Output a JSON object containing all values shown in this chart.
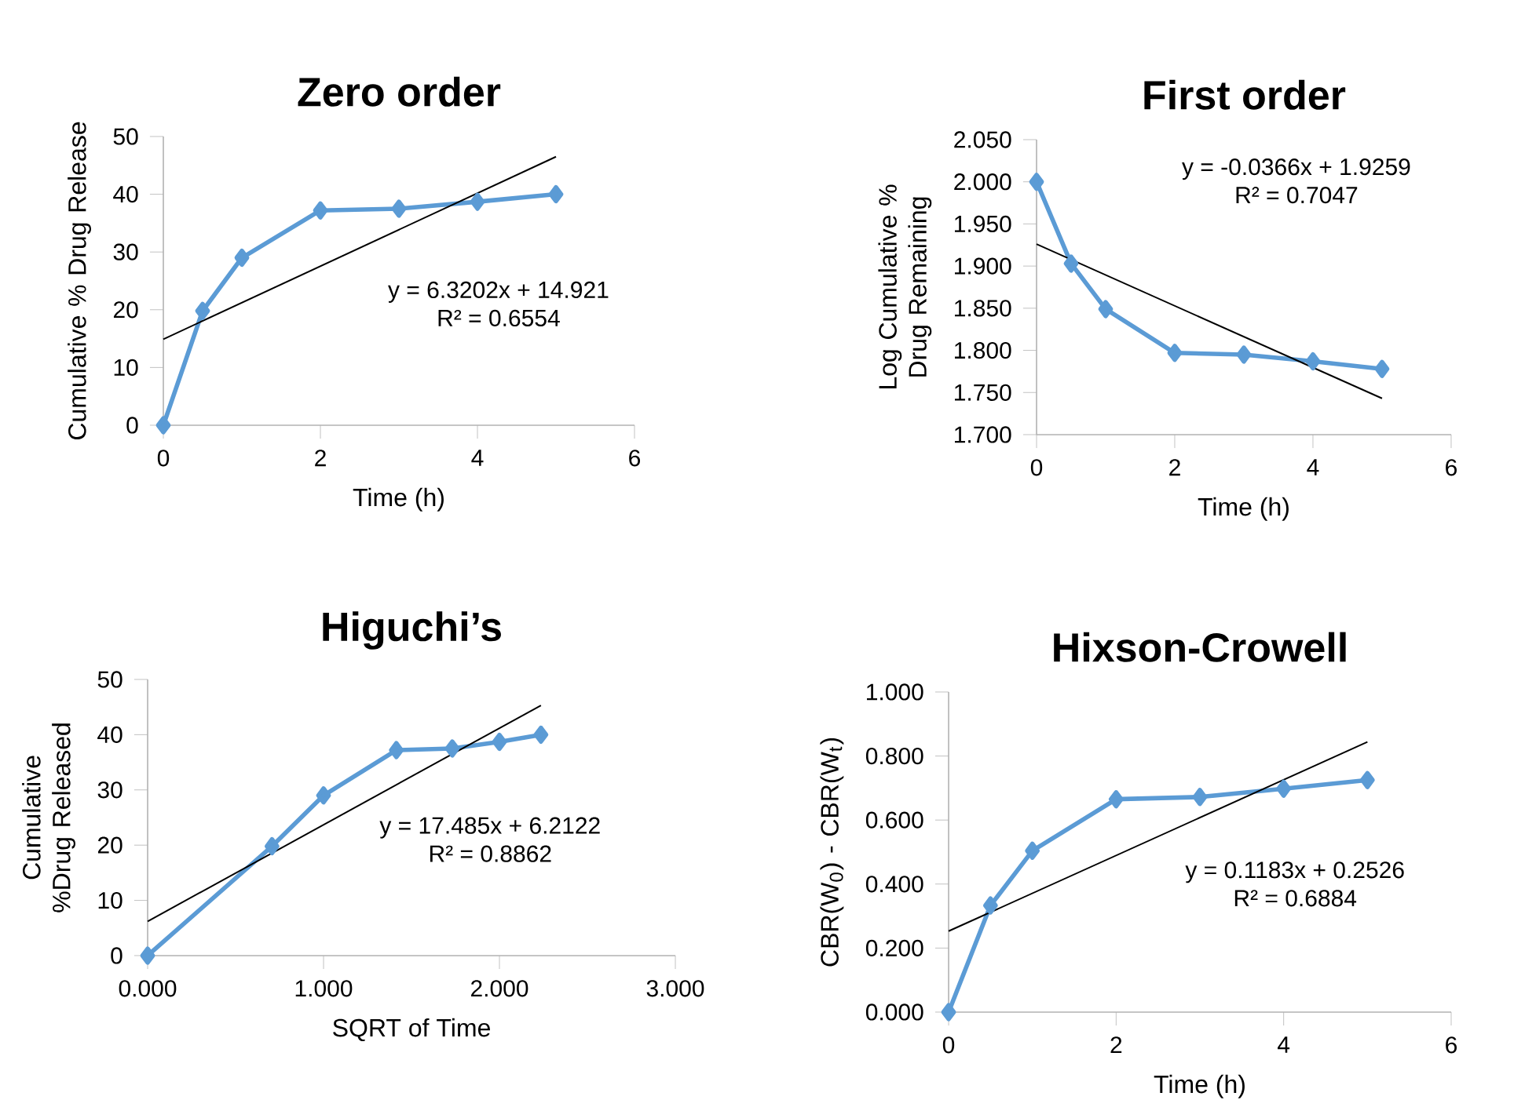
{
  "chart_data": [
    {
      "type": "line",
      "title": "Zero order",
      "xlabel": "Time  (h)",
      "ylabel": "Cumulative % Drug Release",
      "x": [
        0,
        0.5,
        1,
        2,
        3,
        4,
        5
      ],
      "marker": "diamond",
      "series": [
        {
          "color": "#5b9bd5",
          "values": [
            0,
            19.8,
            29,
            37.2,
            37.5,
            38.7,
            40
          ]
        },
        {
          "color": "#000000",
          "marker": "none",
          "x": [
            0,
            5
          ],
          "values": [
            14.9,
            46.5
          ]
        }
      ],
      "xlim": [
        0,
        6
      ],
      "xticks": [
        0,
        2,
        4,
        6
      ],
      "ylim": [
        0,
        50
      ],
      "yticks": [
        0,
        10,
        20,
        30,
        40,
        50
      ],
      "annotations": [
        "y = 6.3202x + 14.921",
        "R² = 0.6554"
      ]
    },
    {
      "type": "line",
      "title": "First order",
      "xlabel": "Time  (h)",
      "ylabel": "Log Cumulative % Drug Remaining",
      "x": [
        0,
        0.5,
        1,
        2,
        3,
        4,
        5
      ],
      "marker": "diamond",
      "series": [
        {
          "color": "#5b9bd5",
          "values": [
            2.0,
            1.903,
            1.849,
            1.797,
            1.795,
            1.787,
            1.778
          ]
        },
        {
          "color": "#000000",
          "marker": "none",
          "x": [
            0,
            5
          ],
          "values": [
            1.926,
            1.743
          ]
        }
      ],
      "xlim": [
        0,
        6
      ],
      "xticks": [
        0,
        2,
        4,
        6
      ],
      "ylim": [
        1.7,
        2.05
      ],
      "yticks": [
        {
          "value": 1.7,
          "label": "1.700"
        },
        {
          "value": 1.75,
          "label": "1.750"
        },
        {
          "value": 1.8,
          "label": "1.800"
        },
        {
          "value": 1.85,
          "label": "1.850"
        },
        {
          "value": 1.9,
          "label": "1.900"
        },
        {
          "value": 1.95,
          "label": "1.950"
        },
        {
          "value": 2.0,
          "label": "2.000"
        },
        {
          "value": 2.05,
          "label": "2.050"
        }
      ],
      "annotations": [
        "y = -0.0366x + 1.9259",
        "R² = 0.7047"
      ]
    },
    {
      "type": "line",
      "title": "Higuchi’s",
      "xlabel": "SQRT of Time",
      "ylabel": "Cumulative %Drug Released",
      "x": [
        0,
        0.707,
        1,
        1.414,
        1.732,
        2,
        2.236
      ],
      "marker": "diamond",
      "series": [
        {
          "color": "#5b9bd5",
          "values": [
            0,
            19.8,
            29,
            37.2,
            37.5,
            38.7,
            40
          ]
        },
        {
          "color": "#000000",
          "marker": "none",
          "x": [
            0,
            2.236
          ],
          "values": [
            6.2,
            45.3
          ]
        }
      ],
      "xlim": [
        0,
        3
      ],
      "xticks": [
        {
          "value": 0,
          "label": "0.000"
        },
        {
          "value": 1,
          "label": "1.000"
        },
        {
          "value": 2,
          "label": "2.000"
        },
        {
          "value": 3,
          "label": "3.000"
        }
      ],
      "ylim": [
        0,
        50
      ],
      "yticks": [
        0,
        10,
        20,
        30,
        40,
        50
      ],
      "annotations": [
        "y = 17.485x + 6.2122",
        "R² = 0.8862"
      ]
    },
    {
      "type": "line",
      "title": "Hixson-Crowell",
      "xlabel": "Time  (h)",
      "ylabel": "CBR(W$_{0}$) - CBR(W$_{t}$)",
      "x": [
        0,
        0.5,
        1,
        2,
        3,
        4,
        5
      ],
      "marker": "diamond",
      "series": [
        {
          "color": "#5b9bd5",
          "values": [
            0,
            0.333,
            0.504,
            0.665,
            0.672,
            0.698,
            0.725
          ]
        },
        {
          "color": "#000000",
          "marker": "none",
          "x": [
            0,
            5
          ],
          "values": [
            0.253,
            0.844
          ]
        }
      ],
      "xlim": [
        0,
        6
      ],
      "xticks": [
        0,
        2,
        4,
        6
      ],
      "ylim": [
        0,
        1
      ],
      "yticks": [
        {
          "value": 0,
          "label": "0.000"
        },
        {
          "value": 0.2,
          "label": "0.200"
        },
        {
          "value": 0.4,
          "label": "0.400"
        },
        {
          "value": 0.6,
          "label": "0.600"
        },
        {
          "value": 0.8,
          "label": "0.800"
        },
        {
          "value": 1,
          "label": "1.000"
        }
      ],
      "annotations": [
        "y = 0.1183x + 0.2526",
        "R² = 0.6884"
      ]
    }
  ]
}
